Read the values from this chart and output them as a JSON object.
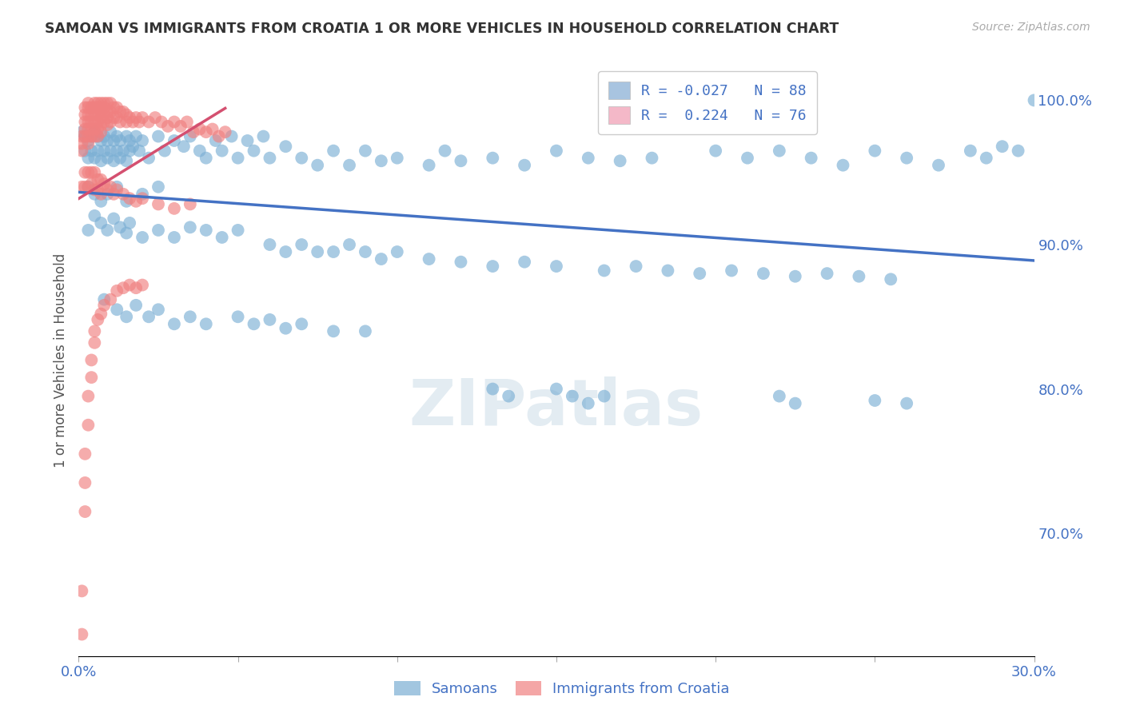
{
  "title": "SAMOAN VS IMMIGRANTS FROM CROATIA 1 OR MORE VEHICLES IN HOUSEHOLD CORRELATION CHART",
  "source": "Source: ZipAtlas.com",
  "ylabel": "1 or more Vehicles in Household",
  "xmin": 0.0,
  "xmax": 0.3,
  "ymin": 0.615,
  "ymax": 1.025,
  "x_ticks": [
    0.0,
    0.05,
    0.1,
    0.15,
    0.2,
    0.25,
    0.3
  ],
  "x_tick_labels": [
    "0.0%",
    "",
    "",
    "",
    "",
    "",
    "30.0%"
  ],
  "y_ticks_right": [
    0.7,
    0.8,
    0.9,
    1.0
  ],
  "y_tick_labels_right": [
    "70.0%",
    "80.0%",
    "90.0%",
    "100.0%"
  ],
  "legend_entries": [
    {
      "label": "R = -0.027   N = 88",
      "color": "#a8c4e0"
    },
    {
      "label": "R =  0.224   N = 76",
      "color": "#f4a7b9"
    }
  ],
  "legend_bottom": [
    "Samoans",
    "Immigrants from Croatia"
  ],
  "samoans_color": "#7bafd4",
  "croatia_color": "#f08080",
  "trendline_samoan_color": "#4472c4",
  "trendline_croatia_color": "#d45070",
  "watermark": "ZIPatlas",
  "background_color": "#ffffff",
  "grid_color": "#cccccc",
  "title_color": "#333333",
  "axis_label_color": "#4472c4",
  "samoans_x": [
    0.001,
    0.002,
    0.002,
    0.003,
    0.003,
    0.004,
    0.004,
    0.005,
    0.005,
    0.006,
    0.006,
    0.007,
    0.007,
    0.008,
    0.008,
    0.009,
    0.009,
    0.01,
    0.01,
    0.011,
    0.011,
    0.012,
    0.012,
    0.013,
    0.013,
    0.014,
    0.015,
    0.015,
    0.016,
    0.016,
    0.017,
    0.018,
    0.019,
    0.02,
    0.022,
    0.025,
    0.027,
    0.03,
    0.033,
    0.035,
    0.038,
    0.04,
    0.043,
    0.045,
    0.048,
    0.05,
    0.053,
    0.055,
    0.058,
    0.06,
    0.065,
    0.07,
    0.075,
    0.08,
    0.085,
    0.09,
    0.095,
    0.1,
    0.11,
    0.115,
    0.12,
    0.13,
    0.14,
    0.15,
    0.16,
    0.17,
    0.18,
    0.2,
    0.21,
    0.22,
    0.23,
    0.24,
    0.25,
    0.26,
    0.27,
    0.28,
    0.285,
    0.29,
    0.295,
    0.3,
    0.003,
    0.005,
    0.007,
    0.009,
    0.012,
    0.015,
    0.02,
    0.025
  ],
  "samoans_y": [
    0.978,
    0.975,
    0.965,
    0.972,
    0.96,
    0.975,
    0.965,
    0.978,
    0.96,
    0.975,
    0.965,
    0.972,
    0.958,
    0.975,
    0.965,
    0.972,
    0.96,
    0.978,
    0.965,
    0.972,
    0.958,
    0.975,
    0.965,
    0.972,
    0.96,
    0.965,
    0.975,
    0.958,
    0.972,
    0.965,
    0.968,
    0.975,
    0.965,
    0.972,
    0.96,
    0.975,
    0.965,
    0.972,
    0.968,
    0.975,
    0.965,
    0.96,
    0.972,
    0.965,
    0.975,
    0.96,
    0.972,
    0.965,
    0.975,
    0.96,
    0.968,
    0.96,
    0.955,
    0.965,
    0.955,
    0.965,
    0.958,
    0.96,
    0.955,
    0.965,
    0.958,
    0.96,
    0.955,
    0.965,
    0.96,
    0.958,
    0.96,
    0.965,
    0.96,
    0.965,
    0.96,
    0.955,
    0.965,
    0.96,
    0.955,
    0.965,
    0.96,
    0.968,
    0.965,
    1.0,
    0.94,
    0.935,
    0.93,
    0.935,
    0.94,
    0.93,
    0.935,
    0.94
  ],
  "samoans_x_low": [
    0.003,
    0.005,
    0.007,
    0.009,
    0.011,
    0.013,
    0.015,
    0.016,
    0.02,
    0.025,
    0.03,
    0.035,
    0.04,
    0.045,
    0.05,
    0.06,
    0.065,
    0.07,
    0.075,
    0.08,
    0.085,
    0.09,
    0.095,
    0.1,
    0.11,
    0.12,
    0.13,
    0.14,
    0.15,
    0.165,
    0.175,
    0.185,
    0.195,
    0.205,
    0.215,
    0.225,
    0.235,
    0.245,
    0.255
  ],
  "samoans_y_low": [
    0.91,
    0.92,
    0.915,
    0.91,
    0.918,
    0.912,
    0.908,
    0.915,
    0.905,
    0.91,
    0.905,
    0.912,
    0.91,
    0.905,
    0.91,
    0.9,
    0.895,
    0.9,
    0.895,
    0.895,
    0.9,
    0.895,
    0.89,
    0.895,
    0.89,
    0.888,
    0.885,
    0.888,
    0.885,
    0.882,
    0.885,
    0.882,
    0.88,
    0.882,
    0.88,
    0.878,
    0.88,
    0.878,
    0.876
  ],
  "samoans_x_spread": [
    0.008,
    0.012,
    0.015,
    0.018,
    0.022,
    0.025,
    0.03,
    0.035,
    0.04,
    0.05,
    0.055,
    0.06,
    0.065,
    0.07,
    0.08,
    0.09,
    0.13,
    0.135,
    0.15,
    0.155,
    0.16,
    0.165,
    0.22,
    0.225,
    0.25,
    0.26
  ],
  "samoans_y_spread": [
    0.862,
    0.855,
    0.85,
    0.858,
    0.85,
    0.855,
    0.845,
    0.85,
    0.845,
    0.85,
    0.845,
    0.848,
    0.842,
    0.845,
    0.84,
    0.84,
    0.8,
    0.795,
    0.8,
    0.795,
    0.79,
    0.795,
    0.795,
    0.79,
    0.792,
    0.79
  ],
  "croatia_x": [
    0.001,
    0.001,
    0.001,
    0.002,
    0.002,
    0.002,
    0.002,
    0.002,
    0.003,
    0.003,
    0.003,
    0.003,
    0.003,
    0.003,
    0.003,
    0.004,
    0.004,
    0.004,
    0.004,
    0.004,
    0.005,
    0.005,
    0.005,
    0.005,
    0.005,
    0.005,
    0.006,
    0.006,
    0.006,
    0.006,
    0.006,
    0.006,
    0.007,
    0.007,
    0.007,
    0.007,
    0.007,
    0.007,
    0.008,
    0.008,
    0.008,
    0.008,
    0.009,
    0.009,
    0.009,
    0.009,
    0.01,
    0.01,
    0.01,
    0.011,
    0.011,
    0.012,
    0.012,
    0.013,
    0.013,
    0.014,
    0.015,
    0.015,
    0.016,
    0.017,
    0.018,
    0.019,
    0.02,
    0.022,
    0.024,
    0.026,
    0.028,
    0.03,
    0.032,
    0.034,
    0.036,
    0.038,
    0.04,
    0.042,
    0.044,
    0.046
  ],
  "croatia_y": [
    0.975,
    0.97,
    0.965,
    0.995,
    0.99,
    0.985,
    0.98,
    0.975,
    0.998,
    0.995,
    0.99,
    0.985,
    0.98,
    0.975,
    0.97,
    0.995,
    0.99,
    0.985,
    0.98,
    0.975,
    0.998,
    0.995,
    0.99,
    0.985,
    0.98,
    0.975,
    0.998,
    0.995,
    0.99,
    0.985,
    0.98,
    0.975,
    0.998,
    0.995,
    0.992,
    0.988,
    0.983,
    0.978,
    0.998,
    0.995,
    0.99,
    0.985,
    0.998,
    0.992,
    0.988,
    0.983,
    0.998,
    0.992,
    0.985,
    0.995,
    0.988,
    0.995,
    0.988,
    0.992,
    0.985,
    0.992,
    0.99,
    0.985,
    0.988,
    0.985,
    0.988,
    0.985,
    0.988,
    0.985,
    0.988,
    0.985,
    0.982,
    0.985,
    0.982,
    0.985,
    0.978,
    0.98,
    0.978,
    0.98,
    0.975,
    0.978
  ],
  "croatia_x_low": [
    0.001,
    0.002,
    0.002,
    0.003,
    0.003,
    0.004,
    0.004,
    0.005,
    0.005,
    0.006,
    0.006,
    0.007,
    0.007,
    0.008,
    0.009,
    0.01,
    0.011,
    0.012,
    0.014,
    0.016,
    0.018,
    0.02,
    0.025,
    0.03,
    0.035
  ],
  "croatia_y_low": [
    0.94,
    0.95,
    0.94,
    0.95,
    0.94,
    0.95,
    0.942,
    0.95,
    0.938,
    0.945,
    0.938,
    0.945,
    0.935,
    0.942,
    0.938,
    0.94,
    0.935,
    0.938,
    0.935,
    0.932,
    0.93,
    0.932,
    0.928,
    0.925,
    0.928
  ],
  "croatia_x_outliers": [
    0.001,
    0.001,
    0.002,
    0.002,
    0.002,
    0.003,
    0.003,
    0.004,
    0.004,
    0.005,
    0.005,
    0.006,
    0.007,
    0.008,
    0.01,
    0.012,
    0.014,
    0.016,
    0.018,
    0.02
  ],
  "croatia_y_outliers": [
    0.63,
    0.66,
    0.715,
    0.735,
    0.755,
    0.775,
    0.795,
    0.808,
    0.82,
    0.832,
    0.84,
    0.848,
    0.852,
    0.858,
    0.862,
    0.868,
    0.87,
    0.872,
    0.87,
    0.872
  ]
}
